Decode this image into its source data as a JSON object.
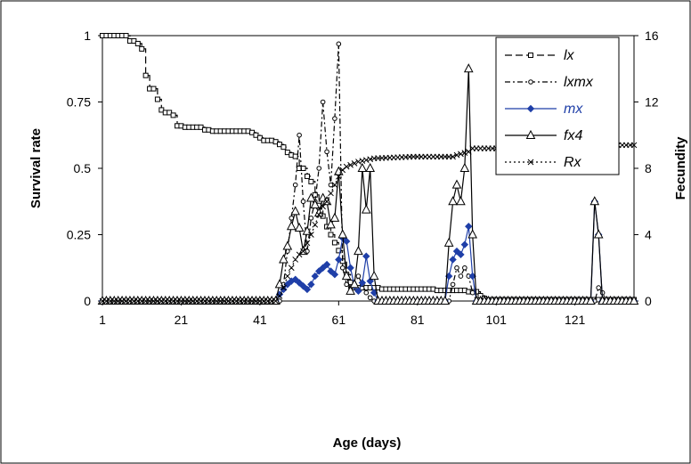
{
  "chart_data": {
    "type": "line",
    "xlabel": "Age (days)",
    "ylabel": "Survival rate",
    "y2label": "Fecundity",
    "xlim": [
      1,
      136
    ],
    "ylim": [
      0,
      1
    ],
    "y2lim": [
      0,
      16
    ],
    "x_ticks": [
      "1",
      "21",
      "41",
      "61",
      "81",
      "101",
      "121"
    ],
    "y_ticks": [
      "0",
      "0.25",
      "0.5",
      "0.75",
      "1"
    ],
    "y2_ticks": [
      "0",
      "4",
      "8",
      "12",
      "16"
    ],
    "legend_position": "top-right",
    "series": [
      {
        "name": "lx",
        "axis": "left",
        "color": "#000000",
        "marker": "square",
        "dash": "8,4",
        "points": [
          [
            1,
            1
          ],
          [
            7,
            1
          ],
          [
            8,
            0.98
          ],
          [
            10,
            0.97
          ],
          [
            11,
            0.95
          ],
          [
            12,
            0.85
          ],
          [
            13,
            0.8
          ],
          [
            15,
            0.76
          ],
          [
            16,
            0.72
          ],
          [
            17,
            0.71
          ],
          [
            19,
            0.7
          ],
          [
            20,
            0.66
          ],
          [
            22,
            0.655
          ],
          [
            27,
            0.645
          ],
          [
            29,
            0.64
          ],
          [
            39,
            0.635
          ],
          [
            40,
            0.625
          ],
          [
            41,
            0.615
          ],
          [
            42,
            0.605
          ],
          [
            45,
            0.6
          ],
          [
            46,
            0.59
          ],
          [
            47,
            0.58
          ],
          [
            48,
            0.56
          ],
          [
            49,
            0.55
          ],
          [
            50,
            0.545
          ],
          [
            51,
            0.5
          ],
          [
            53,
            0.47
          ],
          [
            54,
            0.45
          ],
          [
            55,
            0.4
          ],
          [
            56,
            0.36
          ],
          [
            57,
            0.32
          ],
          [
            58,
            0.28
          ],
          [
            59,
            0.25
          ],
          [
            60,
            0.22
          ],
          [
            61,
            0.19
          ],
          [
            62,
            0.15
          ],
          [
            63,
            0.1
          ],
          [
            64,
            0.07
          ],
          [
            65,
            0.05
          ],
          [
            72,
            0.045
          ],
          [
            86,
            0.04
          ],
          [
            94,
            0.035
          ],
          [
            97,
            0.02
          ],
          [
            98,
            0.01
          ],
          [
            99,
            0.005
          ],
          [
            136,
            0.005
          ]
        ]
      },
      {
        "name": "lxmx",
        "axis": "right",
        "color": "#000000",
        "marker": "circle",
        "dash": "6,3,2,3",
        "points": [
          [
            1,
            0
          ],
          [
            46,
            0
          ],
          [
            47,
            1
          ],
          [
            48,
            3
          ],
          [
            49,
            5
          ],
          [
            50,
            7
          ],
          [
            51,
            10
          ],
          [
            52,
            6
          ],
          [
            53,
            3
          ],
          [
            54,
            5
          ],
          [
            55,
            6
          ],
          [
            56,
            8
          ],
          [
            57,
            12
          ],
          [
            58,
            9
          ],
          [
            59,
            7
          ],
          [
            60,
            11
          ],
          [
            61,
            15.5
          ],
          [
            62,
            2
          ],
          [
            63,
            1
          ],
          [
            64,
            0.8
          ],
          [
            65,
            1
          ],
          [
            66,
            1.5
          ],
          [
            67,
            1
          ],
          [
            68,
            0.5
          ],
          [
            69,
            0.2
          ],
          [
            70,
            0
          ],
          [
            89,
            0
          ],
          [
            90,
            1
          ],
          [
            91,
            2
          ],
          [
            92,
            1.5
          ],
          [
            93,
            2
          ],
          [
            94,
            1.5
          ],
          [
            95,
            0.5
          ],
          [
            96,
            0
          ],
          [
            126,
            0
          ],
          [
            127,
            0.8
          ],
          [
            128,
            0.5
          ],
          [
            129,
            0
          ],
          [
            136,
            0
          ]
        ]
      },
      {
        "name": "mx",
        "axis": "right",
        "color": "#1f3fa8",
        "marker": "diamond",
        "dash": "",
        "points": [
          [
            1,
            0
          ],
          [
            45,
            0
          ],
          [
            46,
            0.4
          ],
          [
            47,
            0.7
          ],
          [
            48,
            1.0
          ],
          [
            49,
            1.2
          ],
          [
            50,
            1.3
          ],
          [
            51,
            1.1
          ],
          [
            52,
            0.9
          ],
          [
            53,
            0.7
          ],
          [
            54,
            1.0
          ],
          [
            55,
            1.5
          ],
          [
            56,
            1.8
          ],
          [
            57,
            2.0
          ],
          [
            58,
            2.2
          ],
          [
            59,
            1.8
          ],
          [
            60,
            1.6
          ],
          [
            61,
            2.5
          ],
          [
            62,
            3.8
          ],
          [
            63,
            3.6
          ],
          [
            64,
            2.0
          ],
          [
            65,
            0.9
          ],
          [
            66,
            0.6
          ],
          [
            67,
            1.1
          ],
          [
            68,
            2.7
          ],
          [
            69,
            1.2
          ],
          [
            70,
            0.5
          ],
          [
            71,
            0
          ],
          [
            88,
            0
          ],
          [
            89,
            1.5
          ],
          [
            90,
            2.5
          ],
          [
            91,
            3.0
          ],
          [
            92,
            2.8
          ],
          [
            93,
            3.4
          ],
          [
            94,
            4.5
          ],
          [
            95,
            1.5
          ],
          [
            96,
            0
          ],
          [
            125,
            0
          ],
          [
            126,
            6
          ],
          [
            127,
            4
          ],
          [
            128,
            0
          ],
          [
            136,
            0
          ]
        ]
      },
      {
        "name": "fx4",
        "axis": "right",
        "color": "#000000",
        "marker": "triangle",
        "dash": "",
        "points": [
          [
            1,
            0
          ],
          [
            45,
            0
          ],
          [
            46,
            1
          ],
          [
            47,
            2.5
          ],
          [
            48,
            3.3
          ],
          [
            49,
            4.5
          ],
          [
            50,
            5.4
          ],
          [
            51,
            4.4
          ],
          [
            52,
            3.0
          ],
          [
            53,
            4.2
          ],
          [
            54,
            6.2
          ],
          [
            55,
            5.8
          ],
          [
            56,
            5.3
          ],
          [
            57,
            6.2
          ],
          [
            58,
            6.0
          ],
          [
            59,
            4.6
          ],
          [
            60,
            5.0
          ],
          [
            61,
            7.8
          ],
          [
            62,
            4.0
          ],
          [
            63,
            1.5
          ],
          [
            64,
            0.6
          ],
          [
            65,
            1.0
          ],
          [
            66,
            3.0
          ],
          [
            67,
            8.0
          ],
          [
            68,
            5.5
          ],
          [
            69,
            8.0
          ],
          [
            70,
            1.5
          ],
          [
            71,
            0
          ],
          [
            88,
            0
          ],
          [
            89,
            3.5
          ],
          [
            90,
            6.0
          ],
          [
            91,
            7.0
          ],
          [
            92,
            6.0
          ],
          [
            93,
            8.0
          ],
          [
            94,
            14.0
          ],
          [
            95,
            4.0
          ],
          [
            96,
            0
          ],
          [
            125,
            0
          ],
          [
            126,
            6
          ],
          [
            127,
            4
          ],
          [
            128,
            0
          ],
          [
            136,
            0
          ]
        ]
      },
      {
        "name": "Rx",
        "axis": "right",
        "color": "#000000",
        "marker": "x",
        "dash": "2,3",
        "points": [
          [
            1,
            0
          ],
          [
            45,
            0
          ],
          [
            46,
            0.3
          ],
          [
            47,
            0.8
          ],
          [
            48,
            1.5
          ],
          [
            49,
            2.0
          ],
          [
            50,
            2.5
          ],
          [
            51,
            2.8
          ],
          [
            52,
            3.0
          ],
          [
            53,
            3.5
          ],
          [
            54,
            4.0
          ],
          [
            55,
            4.6
          ],
          [
            56,
            5.2
          ],
          [
            57,
            5.7
          ],
          [
            58,
            6.0
          ],
          [
            59,
            6.5
          ],
          [
            60,
            7.0
          ],
          [
            61,
            7.5
          ],
          [
            62,
            7.9
          ],
          [
            63,
            8.1
          ],
          [
            64,
            8.2
          ],
          [
            66,
            8.4
          ],
          [
            70,
            8.6
          ],
          [
            80,
            8.7
          ],
          [
            90,
            8.7
          ],
          [
            91,
            8.8
          ],
          [
            94,
            9.0
          ],
          [
            95,
            9.2
          ],
          [
            110,
            9.2
          ],
          [
            126,
            9.3
          ],
          [
            127,
            9.4
          ],
          [
            136,
            9.4
          ]
        ]
      }
    ]
  }
}
